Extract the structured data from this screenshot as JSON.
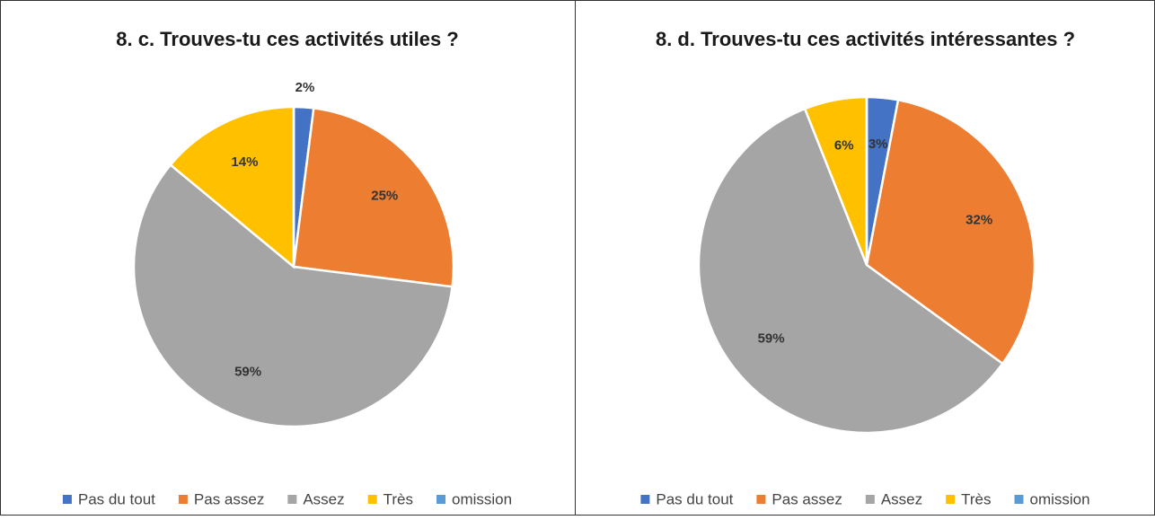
{
  "chart_data": [
    {
      "type": "pie",
      "title": "8. c. Trouves-tu ces activités utiles ?",
      "categories": [
        "Pas du tout",
        "Pas assez",
        "Assez",
        "Très",
        "omission"
      ],
      "values": [
        2,
        25,
        59,
        14,
        0
      ],
      "value_labels": [
        "2%",
        "25%",
        "59%",
        "14%",
        null
      ],
      "colors": [
        "#4472c4",
        "#ed7d31",
        "#a5a5a5",
        "#ffc000",
        "#5b9bd5"
      ],
      "legend": "bottom"
    },
    {
      "type": "pie",
      "title": "8. d. Trouves-tu ces activités intéressantes ?",
      "categories": [
        "Pas du tout",
        "Pas assez",
        "Assez",
        "Très",
        "omission"
      ],
      "values": [
        3,
        32,
        59,
        6,
        0
      ],
      "value_labels": [
        "3%",
        "32%",
        "59%",
        "6%",
        null
      ],
      "colors": [
        "#4472c4",
        "#ed7d31",
        "#a5a5a5",
        "#ffc000",
        "#5b9bd5"
      ],
      "legend": "bottom"
    }
  ]
}
